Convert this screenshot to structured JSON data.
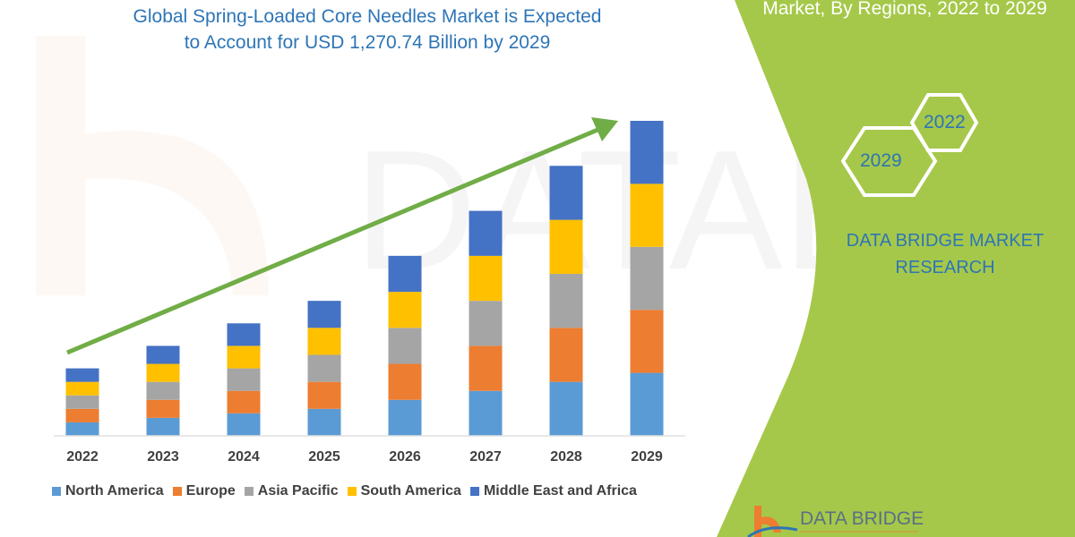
{
  "title_lines": [
    "Global Spring-Loaded Core Needles Market is Expected",
    "to Account for USD 1,270.74 Billion by 2029"
  ],
  "right_panel": {
    "title": "Market, By Regions, 2022 to 2029",
    "hex_years": [
      "2022",
      "2029"
    ],
    "brand_lines": [
      "DATA BRIDGE MARKET",
      "RESEARCH"
    ],
    "logo_text": "DATA BRIDGE",
    "panel_color": "#a5c84a"
  },
  "chart_data": {
    "type": "bar",
    "stacked": true,
    "categories": [
      "2022",
      "2023",
      "2024",
      "2025",
      "2026",
      "2027",
      "2028",
      "2029"
    ],
    "series": [
      {
        "name": "North America",
        "color": "#5b9bd5",
        "values": [
          15,
          20,
          25,
          30,
          40,
          50,
          60,
          70
        ]
      },
      {
        "name": "Europe",
        "color": "#ed7d31",
        "values": [
          15,
          20,
          25,
          30,
          40,
          50,
          60,
          70
        ]
      },
      {
        "name": "Asia Pacific",
        "color": "#a5a5a5",
        "values": [
          15,
          20,
          25,
          30,
          40,
          50,
          60,
          70
        ]
      },
      {
        "name": "South America",
        "color": "#ffc000",
        "values": [
          15,
          20,
          25,
          30,
          40,
          50,
          60,
          70
        ]
      },
      {
        "name": "Middle East and Africa",
        "color": "#4472c4",
        "values": [
          15,
          20,
          25,
          30,
          40,
          50,
          60,
          70
        ]
      }
    ],
    "ylim": [
      0,
      350
    ],
    "y_axis_shown": false,
    "grid": false,
    "legend_placement": "bottom",
    "trend_arrow_color": "#70ad47"
  }
}
